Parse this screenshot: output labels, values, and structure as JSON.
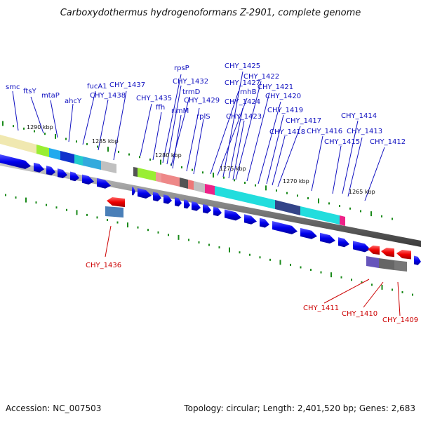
{
  "title": "Carboxydothermus hydrogenoformans Z-2901, complete genome",
  "footer": {
    "accession": "Accession: NC_007503",
    "summary": "Topology: circular; Length: 2,401,520 bp; Genes: 2,683"
  },
  "ruler_labels": [
    "1290 kbp",
    "1285 kbp",
    "1280 kbp",
    "1275 kbp",
    "1270 kbp",
    "1265 kbp"
  ],
  "forward_labels": [
    "smc",
    "ftsY",
    "mtaP",
    "ahcY",
    "fucA1",
    "CHY_1437",
    "CHY_1438",
    "CHY_1435",
    "ffh",
    "rpsP",
    "CHY_1432",
    "trmD",
    "rimM",
    "CHY_1429",
    "CHY_1427",
    "rnhB",
    "rplS",
    "CHY_1425",
    "CHY_1422",
    "CHY_1424",
    "CHY_1421",
    "CHY_1423",
    "CHY_1420",
    "CHY_1419",
    "CHY_1417",
    "CHY_1418",
    "CHY_1416",
    "CHY_1415",
    "CHY_1414",
    "CHY_1413",
    "CHY_1412"
  ],
  "reverse_labels": [
    "CHY_1436",
    "CHY_1411",
    "CHY_1410",
    "CHY_1409"
  ],
  "colors": {
    "forward_gene": "#0000ee",
    "reverse_gene": "#ee0000",
    "forward_label": "#1010c0",
    "reverse_label": "#cc0000",
    "tick": "#1a8a1a",
    "backbone": "#808080"
  }
}
